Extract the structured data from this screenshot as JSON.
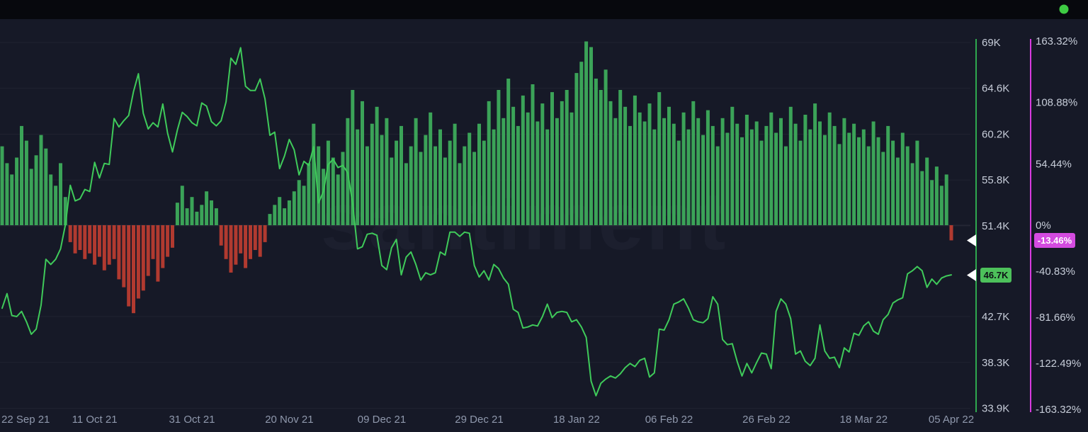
{
  "topbar": {
    "background": "#07080d"
  },
  "page": {
    "background": "#161927"
  },
  "status_indicator": {
    "color": "#3ecb43"
  },
  "watermark": {
    "text": "santiment"
  },
  "chart_data": {
    "type": "mixed",
    "title": "",
    "x_axis": {
      "ticks": [
        {
          "label": "22 Sep 21",
          "day": 0
        },
        {
          "label": "11 Oct 21",
          "day": 19
        },
        {
          "label": "31 Oct 21",
          "day": 39
        },
        {
          "label": "20 Nov 21",
          "day": 59
        },
        {
          "label": "09 Dec 21",
          "day": 78
        },
        {
          "label": "29 Dec 21",
          "day": 98
        },
        {
          "label": "18 Jan 22",
          "day": 118
        },
        {
          "label": "06 Feb 22",
          "day": 137
        },
        {
          "label": "26 Feb 22",
          "day": 157
        },
        {
          "label": "18 Mar 22",
          "day": 177
        },
        {
          "label": "05 Apr 22",
          "day": 195
        }
      ]
    },
    "price_axis": {
      "color": "#2fa84e",
      "min": 33.9,
      "max": 69.0,
      "unit": "K USD",
      "ticks": [
        "69K",
        "64.6K",
        "60.2K",
        "55.8K",
        "51.4K",
        "42.7K",
        "38.3K",
        "33.9K"
      ],
      "tick_values": [
        69,
        64.6,
        60.2,
        55.8,
        51.4,
        42.7,
        38.3,
        33.9
      ],
      "current": {
        "label": "46.7K",
        "value": 46.7,
        "badge_color": "#4dc15b",
        "text_color": "#0d1016"
      }
    },
    "pct_axis": {
      "color": "#d83be0",
      "min": -163.32,
      "max": 163.32,
      "unit": "%",
      "ticks": [
        "163.32%",
        "108.88%",
        "54.44%",
        "0%",
        "-40.83%",
        "-81.66%",
        "-122.49%",
        "-163.32%"
      ],
      "tick_values": [
        163.32,
        108.88,
        54.44,
        0,
        -40.83,
        -81.66,
        -122.49,
        -163.32
      ],
      "current": {
        "label": "-13.46%",
        "value": -13.46,
        "badge_color": "#d44be0",
        "text_color": "#ffffff"
      }
    },
    "series": {
      "price_line": {
        "type": "line",
        "color": "#3fca5a",
        "unit": "K",
        "values": [
          43.5,
          44.9,
          42.8,
          42.7,
          43.2,
          42.2,
          41.0,
          41.5,
          43.8,
          48.2,
          47.7,
          48.2,
          49.2,
          51.5,
          55.3,
          53.8,
          54.0,
          54.9,
          54.7,
          57.5,
          56.0,
          57.4,
          57.3,
          61.7,
          60.9,
          61.5,
          62.0,
          64.3,
          66.0,
          62.2,
          60.7,
          61.3,
          60.9,
          63.1,
          60.3,
          58.5,
          60.6,
          62.3,
          61.9,
          61.3,
          61.0,
          63.2,
          62.9,
          61.4,
          61.0,
          61.5,
          63.3,
          67.5,
          66.9,
          68.5,
          64.8,
          64.4,
          64.4,
          65.5,
          63.6,
          60.1,
          60.4,
          56.9,
          58.1,
          59.7,
          58.7,
          56.3,
          57.6,
          57.2,
          59.0,
          53.6,
          54.7,
          57.3,
          57.8,
          57.0,
          57.2,
          56.5,
          53.6,
          49.2,
          49.4,
          50.6,
          50.7,
          50.5,
          47.6,
          47.2,
          49.3,
          50.1,
          46.7,
          48.4,
          48.9,
          47.7,
          46.2,
          46.9,
          46.7,
          46.9,
          48.9,
          48.6,
          50.8,
          50.8,
          50.4,
          50.8,
          50.7,
          47.6,
          46.5,
          47.1,
          46.2,
          47.7,
          47.3,
          46.4,
          45.8,
          43.4,
          43.1,
          41.6,
          41.7,
          41.9,
          41.8,
          42.7,
          43.9,
          42.6,
          43.1,
          43.2,
          43.1,
          42.2,
          42.4,
          41.7,
          40.7,
          36.5,
          35.1,
          36.3,
          36.7,
          37.0,
          36.8,
          37.2,
          37.8,
          38.2,
          37.9,
          38.5,
          38.7,
          36.9,
          37.3,
          41.5,
          41.4,
          42.4,
          43.9,
          44.1,
          44.4,
          43.5,
          42.4,
          42.2,
          42.1,
          42.5,
          44.6,
          43.9,
          40.5,
          40.0,
          40.1,
          38.4,
          37.0,
          38.2,
          37.3,
          38.3,
          39.2,
          39.1,
          37.7,
          43.2,
          44.4,
          43.9,
          42.5,
          39.1,
          39.4,
          38.4,
          38.0,
          38.7,
          41.9,
          39.4,
          38.7,
          38.8,
          37.8,
          39.7,
          39.3,
          41.1,
          40.9,
          41.8,
          42.2,
          41.3,
          41.0,
          42.4,
          42.9,
          44.0,
          44.3,
          44.5,
          46.8,
          47.1,
          47.5,
          47.1,
          45.5,
          46.3,
          45.8,
          46.4,
          46.6,
          46.7
        ]
      },
      "sentiment_bars": {
        "type": "bar",
        "color_positive": "#3ba358",
        "color_negative": "#b13a30",
        "unit": "%",
        "values": [
          70,
          55,
          45,
          60,
          88,
          75,
          50,
          62,
          80,
          68,
          45,
          35,
          55,
          25,
          -15,
          -25,
          -22,
          -30,
          -25,
          -35,
          -28,
          -40,
          -35,
          -30,
          -48,
          -55,
          -72,
          -78,
          -65,
          -58,
          -45,
          -30,
          -50,
          -38,
          -28,
          -20,
          20,
          35,
          15,
          25,
          12,
          18,
          30,
          22,
          15,
          -18,
          -30,
          -42,
          -35,
          -25,
          -38,
          -30,
          -22,
          -28,
          -15,
          10,
          18,
          25,
          15,
          22,
          30,
          40,
          35,
          55,
          90,
          70,
          50,
          75,
          60,
          45,
          65,
          95,
          120,
          85,
          110,
          70,
          90,
          105,
          80,
          95,
          60,
          75,
          88,
          55,
          70,
          95,
          65,
          80,
          100,
          70,
          85,
          60,
          75,
          90,
          55,
          70,
          82,
          65,
          90,
          75,
          110,
          85,
          120,
          95,
          130,
          105,
          88,
          115,
          100,
          125,
          92,
          108,
          85,
          118,
          95,
          110,
          120,
          100,
          135,
          145,
          163,
          158,
          130,
          120,
          138,
          110,
          95,
          120,
          105,
          88,
          115,
          100,
          92,
          108,
          85,
          118,
          95,
          105,
          90,
          75,
          100,
          85,
          110,
          95,
          80,
          102,
          88,
          70,
          95,
          82,
          105,
          90,
          78,
          98,
          85,
          92,
          75,
          88,
          100,
          82,
          95,
          70,
          105,
          90,
          75,
          98,
          85,
          108,
          92,
          80,
          100,
          88,
          72,
          95,
          82,
          90,
          78,
          85,
          70,
          92,
          78,
          65,
          88,
          75,
          60,
          82,
          70,
          55,
          75,
          48,
          60,
          40,
          52,
          35,
          45,
          -13.46
        ]
      }
    }
  }
}
